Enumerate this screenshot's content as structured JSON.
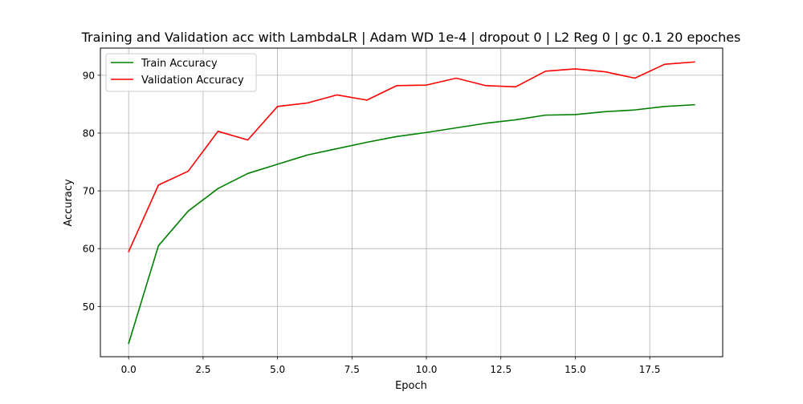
{
  "chart_data": {
    "type": "line",
    "title": "Training and Validation acc with LambdaLR | Adam WD 1e-4 | dropout 0 | L2 Reg 0 | gc 0.1 20 epoches",
    "xlabel": "Epoch",
    "ylabel": "Accuracy",
    "xlim": [
      -0.95,
      19.95
    ],
    "ylim": [
      41.3,
      94.7
    ],
    "xticks": [
      0,
      2.5,
      5,
      7.5,
      10,
      12.5,
      15,
      17.5
    ],
    "xtick_labels": [
      "0.0",
      "2.5",
      "5.0",
      "7.5",
      "10.0",
      "12.5",
      "15.0",
      "17.5"
    ],
    "yticks": [
      50,
      60,
      70,
      80,
      90
    ],
    "ytick_labels": [
      "50",
      "60",
      "70",
      "80",
      "90"
    ],
    "grid": true,
    "legend_position": "top-left",
    "x": [
      0,
      1,
      2,
      3,
      4,
      5,
      6,
      7,
      8,
      9,
      10,
      11,
      12,
      13,
      14,
      15,
      16,
      17,
      18,
      19
    ],
    "series": [
      {
        "name": "Train Accuracy",
        "color": "#008000",
        "values": [
          43.6,
          60.5,
          66.5,
          70.4,
          73.0,
          74.6,
          76.2,
          77.3,
          78.4,
          79.4,
          80.1,
          80.9,
          81.7,
          82.3,
          83.1,
          83.2,
          83.7,
          84.0,
          84.6,
          84.9
        ]
      },
      {
        "name": "Validation Accuracy",
        "color": "#ff0000",
        "values": [
          59.5,
          71.0,
          73.4,
          80.3,
          78.8,
          84.6,
          85.2,
          86.6,
          85.7,
          88.2,
          88.3,
          89.5,
          88.2,
          88.0,
          90.7,
          91.1,
          90.6,
          89.5,
          91.9,
          92.3
        ]
      }
    ]
  }
}
